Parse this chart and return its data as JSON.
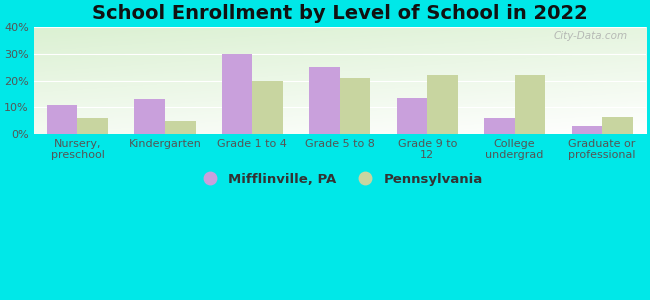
{
  "title": "School Enrollment by Level of School in 2022",
  "categories": [
    "Nursery,\npreschool",
    "Kindergarten",
    "Grade 1 to 4",
    "Grade 5 to 8",
    "Grade 9 to\n12",
    "College\nundergrad",
    "Graduate or\nprofessional"
  ],
  "mifflinville": [
    11,
    13,
    30,
    25,
    13.5,
    6,
    3
  ],
  "pennsylvania": [
    6,
    5,
    20,
    21,
    22,
    22,
    6.5
  ],
  "color_mifflinville": "#c9a0dc",
  "color_pennsylvania": "#c8d5a0",
  "background_outer": "#00e8e8",
  "ylim": [
    0,
    40
  ],
  "yticks": [
    0,
    10,
    20,
    30,
    40
  ],
  "bar_width": 0.35,
  "legend_labels": [
    "Mifflinville, PA",
    "Pennsylvania"
  ],
  "title_fontsize": 14,
  "tick_fontsize": 8,
  "legend_fontsize": 9.5,
  "watermark": "City-Data.com"
}
